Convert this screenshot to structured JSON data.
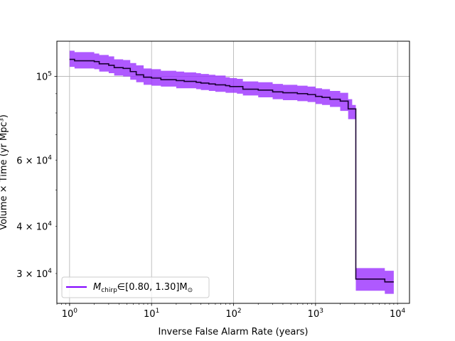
{
  "chart_data": {
    "type": "line",
    "xlabel": "Inverse False Alarm Rate (years)",
    "ylabel": "Volume × Time (yr Mpc³)",
    "x_scale": "log",
    "y_scale": "log",
    "xlim": [
      0.7,
      14000
    ],
    "ylim": [
      25000,
      124000
    ],
    "grid": true,
    "legend_position": "lower-left",
    "x_ticks": [
      {
        "value": 1,
        "base": "10",
        "exp": "0"
      },
      {
        "value": 10,
        "base": "10",
        "exp": "1"
      },
      {
        "value": 100,
        "base": "10",
        "exp": "2"
      },
      {
        "value": 1000,
        "base": "10",
        "exp": "3"
      },
      {
        "value": 10000,
        "base": "10",
        "exp": "4"
      }
    ],
    "y_ticks": [
      {
        "value": 100000,
        "mant": "",
        "base": "10",
        "exp": "5"
      },
      {
        "value": 60000,
        "mant": "6 × ",
        "base": "10",
        "exp": "4"
      },
      {
        "value": 40000,
        "mant": "4 × ",
        "base": "10",
        "exp": "4"
      },
      {
        "value": 30000,
        "mant": "3 × ",
        "base": "10",
        "exp": "4"
      }
    ],
    "series": [
      {
        "name_main": "M",
        "name_sub": "chirp",
        "name_rest": "∈[0.80, 1.30]M",
        "name_sub2": "⊙",
        "line_color": "#1a0033",
        "band_color": "#9b30ff",
        "legend_color": "#7f00ff",
        "x": [
          1.0,
          1.15,
          1.5,
          2.0,
          2.3,
          3.0,
          3.5,
          4.5,
          5.5,
          6.5,
          8.0,
          10,
          13,
          20,
          25,
          35,
          40,
          50,
          60,
          80,
          90,
          110,
          130,
          200,
          300,
          400,
          600,
          800,
          1000,
          1200,
          1500,
          2000,
          2500,
          2800,
          3100,
          4500,
          6000,
          7000,
          9000
        ],
        "y": [
          111000,
          110000,
          110000,
          109500,
          108000,
          107000,
          105500,
          105000,
          103000,
          101000,
          99500,
          99000,
          98000,
          97500,
          97000,
          96500,
          96000,
          95500,
          95000,
          94500,
          94000,
          94000,
          92500,
          92000,
          91000,
          90500,
          90000,
          89500,
          88500,
          88000,
          87000,
          86000,
          82000,
          82000,
          29000,
          29000,
          29000,
          28500,
          28500
        ],
        "y_low": [
          106000,
          105000,
          105000,
          104500,
          103000,
          102000,
          100500,
          100000,
          98000,
          96500,
          95000,
          94500,
          94000,
          93000,
          93000,
          92500,
          92000,
          91500,
          91000,
          90500,
          90500,
          90000,
          89000,
          88000,
          87000,
          86500,
          86000,
          85500,
          84500,
          84000,
          83000,
          81000,
          77000,
          77000,
          27000,
          27000,
          27000,
          26500,
          26500
        ],
        "y_high": [
          117000,
          116000,
          116000,
          115000,
          114000,
          113000,
          111000,
          110500,
          108500,
          107000,
          105000,
          104500,
          103500,
          103000,
          102500,
          102000,
          101500,
          101000,
          100500,
          99500,
          99000,
          98500,
          97000,
          96500,
          95500,
          95000,
          94500,
          94000,
          93000,
          92500,
          91500,
          90500,
          87000,
          84000,
          31000,
          31000,
          31000,
          30500,
          30500
        ]
      }
    ]
  }
}
